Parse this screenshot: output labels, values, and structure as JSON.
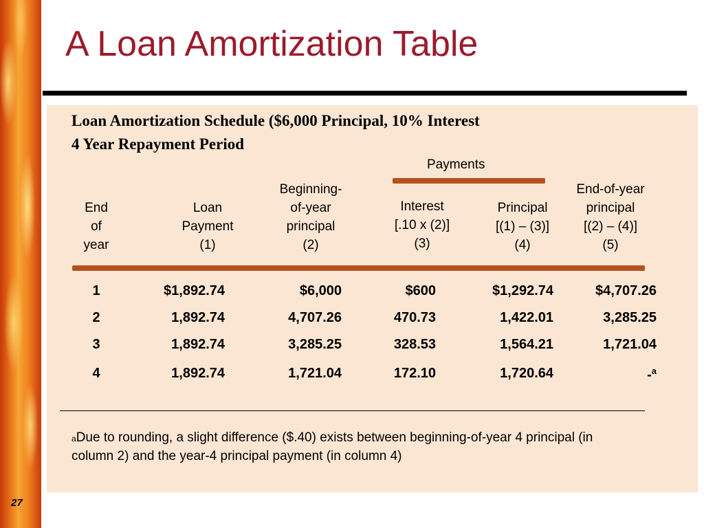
{
  "slide": {
    "title": "A Loan Amortization Table",
    "page_number": "27"
  },
  "table": {
    "caption_line1": "Loan Amortization Schedule ($6,000 Principal, 10% Interest",
    "caption_line2": "4 Year Repayment Period",
    "group_header": "Payments",
    "columns": [
      {
        "l1": "",
        "l2": "End",
        "l3": "of",
        "l4": "year"
      },
      {
        "l1": "",
        "l2": "Loan",
        "l3": "Payment",
        "l4": "(1)"
      },
      {
        "l1": "Beginning-",
        "l2": "of-year",
        "l3": "principal",
        "l4": "(2)"
      },
      {
        "l1": "",
        "l2": "Interest",
        "l3": "[.10 x (2)]",
        "l4": "(3)"
      },
      {
        "l1": "",
        "l2": "Principal",
        "l3": "[(1) – (3)]",
        "l4": "(4)"
      },
      {
        "l1": "End-of-year",
        "l2": "principal",
        "l3": "[(2) – (4)]",
        "l4": "(5)"
      }
    ],
    "rows": [
      [
        "1",
        "$1,892.74",
        "$6,000",
        "$600",
        "$1,292.74",
        "$4,707.26"
      ],
      [
        "2",
        "1,892.74",
        "4,707.26",
        "470.73",
        "1,422.01",
        "3,285.25"
      ],
      [
        "3",
        "1,892.74",
        "3,285.25",
        "328.53",
        "1,564.21",
        "1,721.04"
      ],
      [
        "4",
        "1,892.74",
        "1,721.04",
        "172.10",
        "1,720.64",
        "-"
      ]
    ],
    "last_cell_superscript": "a",
    "footnote_marker": "a",
    "footnote_text": "Due to rounding, a slight difference ($.40) exists between beginning-of-year 4 principal (in column 2) and the year-4 principal payment (in column 4)"
  },
  "colors": {
    "title": "#9b1b2c",
    "panel_background": "#fbe6d3",
    "rule_bar": "#b4521f"
  }
}
